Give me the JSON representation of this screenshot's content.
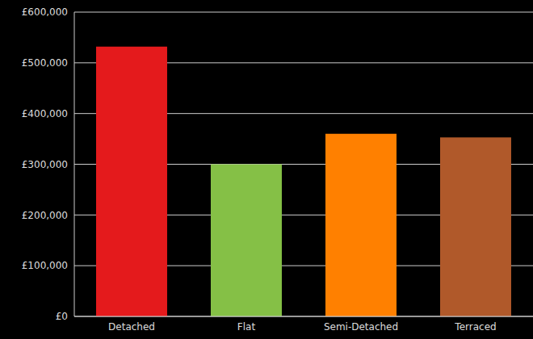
{
  "chart_data": {
    "type": "bar",
    "categories": [
      "Detached",
      "Flat",
      "Semi-Detached",
      "Terraced"
    ],
    "values": [
      532000,
      300000,
      360000,
      353000
    ],
    "colors": [
      "#e41a1c",
      "#85c046",
      "#ff8000",
      "#b0592a"
    ],
    "ylim": [
      0,
      600000
    ],
    "yticks": [
      {
        "value": 0,
        "label": "£0"
      },
      {
        "value": 100000,
        "label": "£100,000"
      },
      {
        "value": 200000,
        "label": "£200,000"
      },
      {
        "value": 300000,
        "label": "£300,000"
      },
      {
        "value": 400000,
        "label": "£400,000"
      },
      {
        "value": 500000,
        "label": "£500,000"
      },
      {
        "value": 600000,
        "label": "£600,000"
      }
    ],
    "grid": true
  }
}
